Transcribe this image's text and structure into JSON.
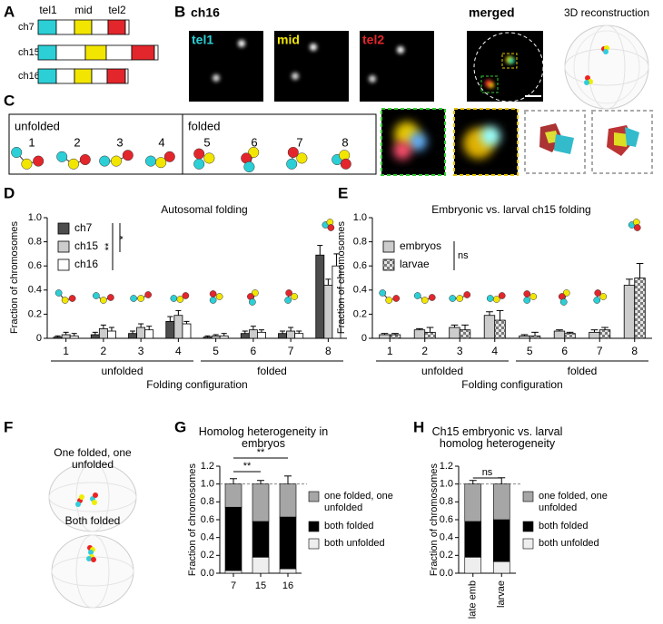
{
  "panel_labels": [
    "A",
    "B",
    "C",
    "D",
    "E",
    "F",
    "G",
    "H"
  ],
  "panel_a": {
    "chromosomes": [
      "ch7",
      "ch15",
      "ch16"
    ],
    "loci": [
      "tel1",
      "mid",
      "tel2"
    ]
  },
  "panel_b": {
    "title": "ch16",
    "channels": [
      "tel1",
      "mid",
      "tel2",
      "merged"
    ],
    "reconstruction": "3D reconstruction"
  },
  "panel_c": {
    "groups": [
      "unfolded",
      "folded"
    ],
    "configurations": [
      "1",
      "2",
      "3",
      "4",
      "5",
      "6",
      "7",
      "8"
    ]
  },
  "panel_f": {
    "labels": [
      "One folded, one unfolded",
      "Both folded"
    ]
  },
  "chart_data": [
    {
      "type": "grouped_bar",
      "title": "Autosomal folding",
      "ylabel": "Fraction of chromosomes",
      "xlabel": "Folding configuration",
      "categories": [
        "1",
        "2",
        "3",
        "4",
        "5",
        "6",
        "7",
        "8"
      ],
      "group_labels": [
        "unfolded",
        "folded"
      ],
      "ylim": [
        0,
        1
      ],
      "yticks": [
        0,
        0.2,
        0.4,
        0.6,
        0.8,
        {
          "value": 1,
          "label": "1.0"
        }
      ],
      "significance": [
        "**",
        "*"
      ],
      "series": [
        {
          "name": "ch7",
          "color": "#4d4d4d",
          "values": [
            0.01,
            0.03,
            0.04,
            0.14,
            0.01,
            0.04,
            0.04,
            0.69
          ],
          "errors": [
            0.01,
            0.02,
            0.02,
            0.04,
            0.01,
            0.02,
            0.02,
            0.08
          ]
        },
        {
          "name": "ch15",
          "color": "#cccccc",
          "values": [
            0.03,
            0.08,
            0.09,
            0.19,
            0.02,
            0.07,
            0.06,
            0.44
          ],
          "errors": [
            0.02,
            0.03,
            0.03,
            0.04,
            0.01,
            0.03,
            0.03,
            0.05
          ]
        },
        {
          "name": "ch16",
          "color": "#ffffff",
          "values": [
            0.02,
            0.06,
            0.07,
            0.12,
            0.02,
            0.05,
            0.04,
            0.6
          ],
          "errors": [
            0.02,
            0.03,
            0.03,
            0.02,
            0.02,
            0.02,
            0.02,
            0.1
          ]
        }
      ]
    },
    {
      "type": "grouped_bar",
      "title": "Embryonic vs. larval ch15 folding",
      "ylabel": "Fraction of chromosomes",
      "xlabel": "Folding configuration",
      "categories": [
        "1",
        "2",
        "3",
        "4",
        "5",
        "6",
        "7",
        "8"
      ],
      "group_labels": [
        "unfolded",
        "folded"
      ],
      "ylim": [
        0,
        1
      ],
      "yticks": [
        0,
        0.2,
        0.4,
        0.6,
        0.8,
        {
          "value": 1,
          "label": "1.0"
        }
      ],
      "significance": [
        "ns"
      ],
      "series": [
        {
          "name": "embryos",
          "color": "#cccccc",
          "values": [
            0.03,
            0.07,
            0.09,
            0.19,
            0.02,
            0.06,
            0.05,
            0.44
          ],
          "errors": [
            0.01,
            0.01,
            0.02,
            0.03,
            0.01,
            0.01,
            0.02,
            0.05
          ]
        },
        {
          "name": "larvae",
          "color": "#8c8c8c",
          "pattern": "checker",
          "values": [
            0.03,
            0.05,
            0.07,
            0.15,
            0.02,
            0.04,
            0.07,
            0.5
          ],
          "errors": [
            0.01,
            0.04,
            0.04,
            0.08,
            0.03,
            0.01,
            0.02,
            0.12
          ]
        }
      ]
    },
    {
      "type": "stacked_bar",
      "title": "Homolog heterogeneity in embryos",
      "ylabel": "Fraction of chromosomes",
      "categories": [
        "7",
        "15",
        "16"
      ],
      "ylim": [
        0,
        1.2
      ],
      "yticks": [
        {
          "value": 0,
          "label": "0.0"
        },
        0.2,
        0.4,
        0.6,
        0.8,
        {
          "value": 1,
          "label": "1.0"
        },
        1.2
      ],
      "reference_line": 1,
      "significance": [
        "**",
        "**"
      ],
      "series": [
        {
          "name": "both unfolded",
          "color": "#eeeeee",
          "values": [
            0.03,
            0.18,
            0.05
          ],
          "errors": [
            0.02,
            0.05,
            0.05
          ]
        },
        {
          "name": "both folded",
          "color": "#000000",
          "values": [
            0.71,
            0.4,
            0.58
          ],
          "errors": [
            0.08,
            0.05,
            0.15
          ]
        },
        {
          "name": "one folded, one unfolded",
          "color": "#a6a6a6",
          "values": [
            0.26,
            0.42,
            0.37
          ],
          "errors": [
            0.06,
            0.04,
            0.09
          ]
        }
      ]
    },
    {
      "type": "stacked_bar",
      "title": "Ch15 embryonic vs. larval homolog heterogeneity",
      "ylabel": "Fraction of chromosomes",
      "categories": [
        "late emb",
        "larvae"
      ],
      "ylim": [
        0,
        1.2
      ],
      "yticks": [
        {
          "value": 0,
          "label": "0.0"
        },
        0.2,
        0.4,
        0.6,
        0.8,
        {
          "value": 1,
          "label": "1.0"
        },
        1.2
      ],
      "reference_line": 1,
      "significance": [
        "ns"
      ],
      "series": [
        {
          "name": "both unfolded",
          "color": "#eeeeee",
          "values": [
            0.18,
            0.13
          ],
          "errors": [
            0.05,
            0.09
          ]
        },
        {
          "name": "both folded",
          "color": "#000000",
          "values": [
            0.4,
            0.47
          ],
          "errors": [
            0.05,
            0.13
          ]
        },
        {
          "name": "one folded, one unfolded",
          "color": "#a6a6a6",
          "values": [
            0.42,
            0.4
          ],
          "errors": [
            0.04,
            0.07
          ]
        }
      ]
    }
  ]
}
